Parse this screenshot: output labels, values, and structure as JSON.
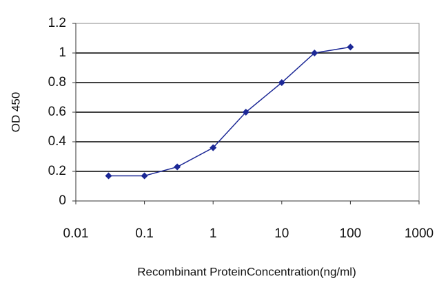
{
  "chart_data": {
    "type": "line",
    "x_label": "Recombinant ProteinConcentration(ng/ml)",
    "y_label": "OD 450",
    "x": [
      0.03,
      0.1,
      0.3,
      1,
      3,
      10,
      30,
      100
    ],
    "values": [
      0.17,
      0.17,
      0.23,
      0.36,
      0.6,
      0.8,
      1.0,
      1.04
    ],
    "color": "#1c2896",
    "xlog": true,
    "xlim": [
      0.01,
      1000
    ],
    "xticks": [
      0.01,
      0.1,
      1,
      10,
      100,
      1000
    ],
    "ylim": [
      0,
      1.2
    ],
    "yticks": [
      0,
      0.2,
      0.4,
      0.6,
      0.8,
      1,
      1.2
    ],
    "grid": true
  }
}
